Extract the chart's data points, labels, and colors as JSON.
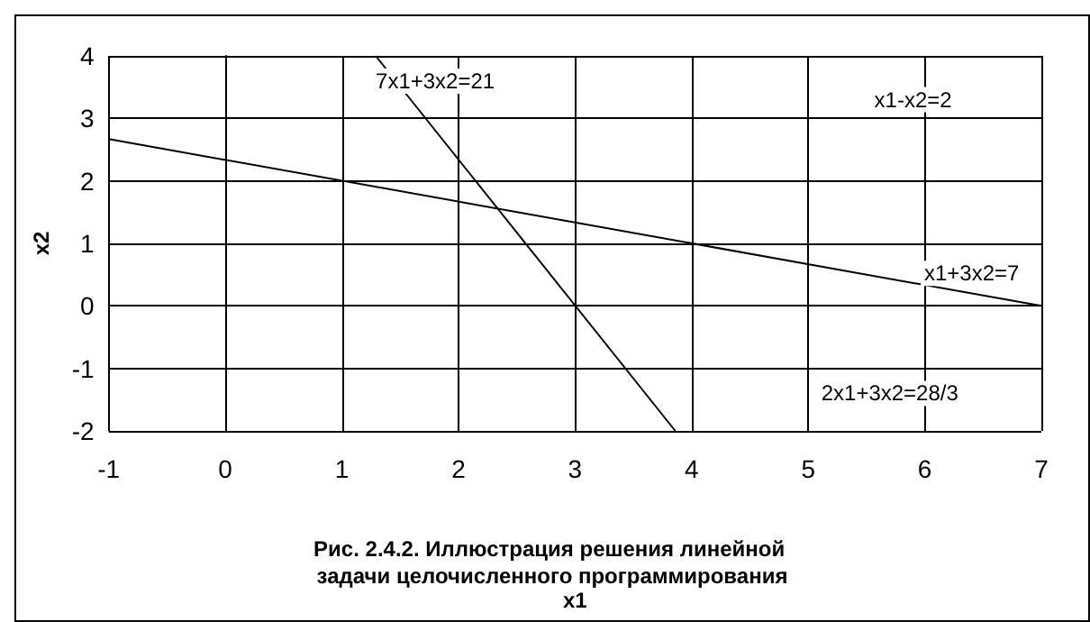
{
  "chart_data": {
    "type": "line",
    "title": "Рис. 2.4.2. Иллюстрация решения линейной задачи целочисленного программирования",
    "xlabel": "x1",
    "ylabel": "x2",
    "xlim": [
      -1,
      7
    ],
    "ylim": [
      -2,
      4
    ],
    "xticks": [
      -1,
      0,
      1,
      2,
      3,
      4,
      5,
      6,
      7
    ],
    "yticks": [
      -2,
      -1,
      0,
      1,
      2,
      3,
      4
    ],
    "grid": true,
    "legend": false,
    "marker": "none",
    "line_style": "solid",
    "series": [
      {
        "name": "x1+3x2=7",
        "color": "#000000",
        "x": [
          -1,
          7
        ],
        "values": [
          2.67,
          0
        ]
      },
      {
        "name": "7x1+3x2=21",
        "color": "#000000",
        "x": [
          3.86,
          1.29
        ],
        "values": [
          -2,
          4
        ]
      }
    ],
    "annotations": [
      "x1-x2=2",
      "2x1+3x2=28/3"
    ]
  }
}
